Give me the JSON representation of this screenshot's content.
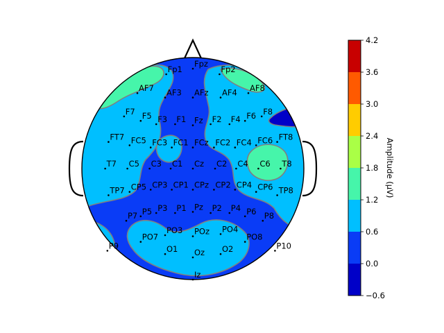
{
  "chart_data": {
    "type": "heatmap",
    "subtype": "eeg-topomap",
    "colormap": "jet",
    "colorbar": {
      "label": "Amplitude (μV)",
      "levels": [
        -0.6,
        0.0,
        0.6,
        1.2,
        1.8,
        2.4,
        3.0,
        3.6,
        4.2
      ],
      "ticks": [
        "−0.6",
        "0.0",
        "0.6",
        "1.2",
        "1.8",
        "2.4",
        "3.0",
        "3.6",
        "4.2"
      ],
      "colors": [
        "#0000c8",
        "#0a3cf6",
        "#00bfff",
        "#46f5aa",
        "#aaff46",
        "#ffcc00",
        "#ff5a00",
        "#c80000"
      ]
    },
    "background_level_index": 1,
    "electrodes": [
      {
        "name": "Fp1",
        "x": -0.24,
        "y": 0.85
      },
      {
        "name": "Fpz",
        "x": 0.0,
        "y": 0.9
      },
      {
        "name": "Fp2",
        "x": 0.24,
        "y": 0.85
      },
      {
        "name": "AF7",
        "x": -0.5,
        "y": 0.68
      },
      {
        "name": "AF3",
        "x": -0.25,
        "y": 0.64
      },
      {
        "name": "AFz",
        "x": 0.0,
        "y": 0.64
      },
      {
        "name": "AF4",
        "x": 0.25,
        "y": 0.64
      },
      {
        "name": "AF8",
        "x": 0.5,
        "y": 0.68
      },
      {
        "name": "F7",
        "x": -0.62,
        "y": 0.47
      },
      {
        "name": "F5",
        "x": -0.47,
        "y": 0.43
      },
      {
        "name": "F3",
        "x": -0.33,
        "y": 0.4
      },
      {
        "name": "F1",
        "x": -0.16,
        "y": 0.4
      },
      {
        "name": "Fz",
        "x": 0.0,
        "y": 0.39
      },
      {
        "name": "F2",
        "x": 0.16,
        "y": 0.4
      },
      {
        "name": "F4",
        "x": 0.33,
        "y": 0.4
      },
      {
        "name": "F6",
        "x": 0.47,
        "y": 0.43
      },
      {
        "name": "F8",
        "x": 0.62,
        "y": 0.47
      },
      {
        "name": "FT7",
        "x": -0.76,
        "y": 0.24
      },
      {
        "name": "FC5",
        "x": -0.57,
        "y": 0.21
      },
      {
        "name": "FC3",
        "x": -0.38,
        "y": 0.19
      },
      {
        "name": "FC1",
        "x": -0.19,
        "y": 0.19
      },
      {
        "name": "FCz",
        "x": 0.0,
        "y": 0.19
      },
      {
        "name": "FC2",
        "x": 0.19,
        "y": 0.19
      },
      {
        "name": "FC4",
        "x": 0.38,
        "y": 0.19
      },
      {
        "name": "FC6",
        "x": 0.57,
        "y": 0.21
      },
      {
        "name": "FT8",
        "x": 0.76,
        "y": 0.24
      },
      {
        "name": "T7",
        "x": -0.79,
        "y": 0.0
      },
      {
        "name": "C5",
        "x": -0.59,
        "y": 0.0
      },
      {
        "name": "C3",
        "x": -0.39,
        "y": 0.0
      },
      {
        "name": "C1",
        "x": -0.2,
        "y": 0.0
      },
      {
        "name": "Cz",
        "x": 0.0,
        "y": 0.0
      },
      {
        "name": "C2",
        "x": 0.2,
        "y": 0.0
      },
      {
        "name": "C4",
        "x": 0.39,
        "y": 0.0
      },
      {
        "name": "C6",
        "x": 0.59,
        "y": 0.0
      },
      {
        "name": "T8",
        "x": 0.79,
        "y": 0.0
      },
      {
        "name": "TP7",
        "x": -0.76,
        "y": -0.24
      },
      {
        "name": "CP5",
        "x": -0.57,
        "y": -0.21
      },
      {
        "name": "CP3",
        "x": -0.38,
        "y": -0.19
      },
      {
        "name": "CP1",
        "x": -0.19,
        "y": -0.19
      },
      {
        "name": "CPz",
        "x": 0.0,
        "y": -0.19
      },
      {
        "name": "CP2",
        "x": 0.19,
        "y": -0.19
      },
      {
        "name": "CP4",
        "x": 0.38,
        "y": -0.19
      },
      {
        "name": "CP6",
        "x": 0.57,
        "y": -0.21
      },
      {
        "name": "TP8",
        "x": 0.76,
        "y": -0.24
      },
      {
        "name": "P7",
        "x": -0.6,
        "y": -0.47
      },
      {
        "name": "P5",
        "x": -0.47,
        "y": -0.43
      },
      {
        "name": "P3",
        "x": -0.33,
        "y": -0.4
      },
      {
        "name": "P1",
        "x": -0.16,
        "y": -0.4
      },
      {
        "name": "Pz",
        "x": 0.0,
        "y": -0.39
      },
      {
        "name": "P2",
        "x": 0.16,
        "y": -0.4
      },
      {
        "name": "P4",
        "x": 0.33,
        "y": -0.4
      },
      {
        "name": "P6",
        "x": 0.47,
        "y": -0.43
      },
      {
        "name": "P8",
        "x": 0.63,
        "y": -0.47
      },
      {
        "name": "PO7",
        "x": -0.47,
        "y": -0.66
      },
      {
        "name": "PO3",
        "x": -0.25,
        "y": -0.6
      },
      {
        "name": "POz",
        "x": 0.0,
        "y": -0.61
      },
      {
        "name": "PO4",
        "x": 0.25,
        "y": -0.59
      },
      {
        "name": "PO8",
        "x": 0.47,
        "y": -0.66
      },
      {
        "name": "P9",
        "x": -0.77,
        "y": -0.74
      },
      {
        "name": "O1",
        "x": -0.25,
        "y": -0.77
      },
      {
        "name": "Oz",
        "x": 0.0,
        "y": -0.8
      },
      {
        "name": "O2",
        "x": 0.25,
        "y": -0.77
      },
      {
        "name": "P10",
        "x": 0.74,
        "y": -0.74
      },
      {
        "name": "Iz",
        "x": 0.0,
        "y": -1.0
      }
    ]
  }
}
